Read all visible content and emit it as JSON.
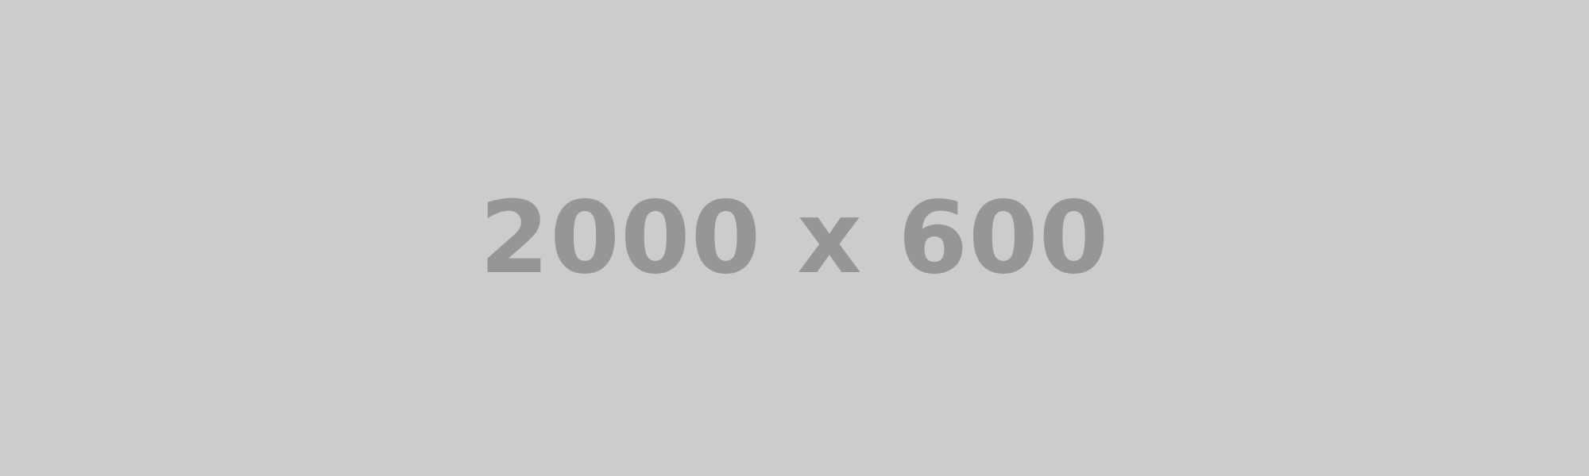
{
  "placeholder": {
    "label": "2000 x 600",
    "background_color": "#cccccc",
    "text_color": "#969696"
  }
}
